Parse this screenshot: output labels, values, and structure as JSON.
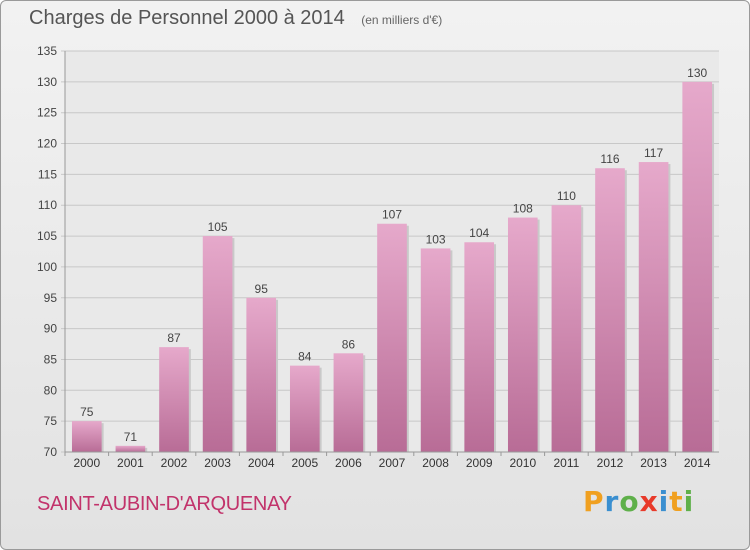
{
  "chart_data": {
    "type": "bar",
    "title": "Charges de Personnel 2000 à 2014",
    "subtitle": "(en milliers d'€)",
    "categories": [
      "2000",
      "2001",
      "2002",
      "2003",
      "2004",
      "2005",
      "2006",
      "2007",
      "2008",
      "2009",
      "2010",
      "2011",
      "2012",
      "2013",
      "2014"
    ],
    "values": [
      75,
      71,
      87,
      105,
      95,
      84,
      86,
      107,
      103,
      104,
      108,
      110,
      116,
      117,
      130
    ],
    "ylim": [
      70,
      135
    ],
    "yticks": [
      70,
      75,
      80,
      85,
      90,
      95,
      100,
      105,
      110,
      115,
      120,
      125,
      130,
      135
    ],
    "grid": true,
    "bar_color": "#d98fb8"
  },
  "commune": "SAINT-AUBIN-D'ARQUENAY",
  "logo": {
    "letters": [
      "P",
      "r",
      "o",
      "x",
      "i",
      "t",
      "i"
    ],
    "colors": [
      "#f0a020",
      "#3a8fd0",
      "#5fb04a",
      "#e83a2a",
      "#3a8fd0",
      "#f0a020",
      "#5fb04a"
    ]
  }
}
